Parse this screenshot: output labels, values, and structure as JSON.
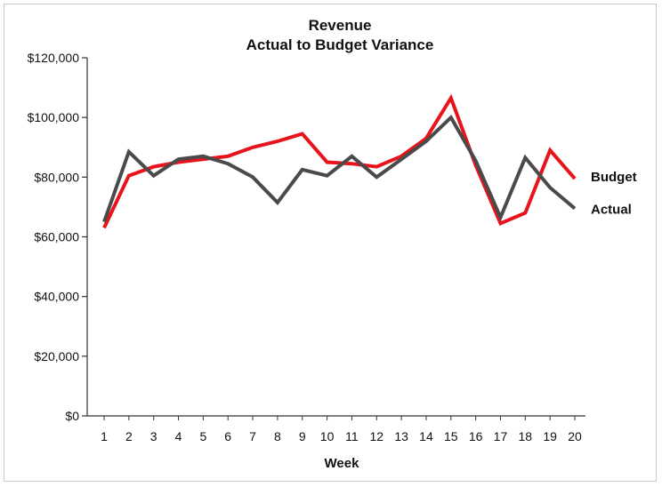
{
  "chart_data": {
    "type": "line",
    "title": [
      "Revenue",
      "Actual to Budget Variance"
    ],
    "xlabel": "Week",
    "ylabel": "",
    "x": [
      1,
      2,
      3,
      4,
      5,
      6,
      7,
      8,
      9,
      10,
      11,
      12,
      13,
      14,
      15,
      16,
      17,
      18,
      19,
      20
    ],
    "ylim": [
      0,
      120000
    ],
    "y_ticks": [
      0,
      20000,
      40000,
      60000,
      80000,
      100000,
      120000
    ],
    "y_tick_labels": [
      "$0",
      "$20,000",
      "$40,000",
      "$60,000",
      "$80,000",
      "$100,000",
      "$120,000"
    ],
    "grid": false,
    "legend": "inline labels at line ends (right)",
    "series": [
      {
        "name": "Budget",
        "color": "#e8141c",
        "values": [
          63000,
          80500,
          83500,
          85000,
          86000,
          87000,
          90000,
          92000,
          94500,
          85000,
          84500,
          83500,
          87000,
          93000,
          106500,
          84000,
          64500,
          68000,
          89000,
          79500
        ]
      },
      {
        "name": "Actual",
        "color": "#4a4a4a",
        "values": [
          65000,
          88500,
          80500,
          86000,
          87000,
          84500,
          80000,
          71500,
          82500,
          80500,
          87000,
          80000,
          86000,
          92000,
          100000,
          85500,
          66500,
          86500,
          76500,
          69500
        ]
      }
    ]
  }
}
